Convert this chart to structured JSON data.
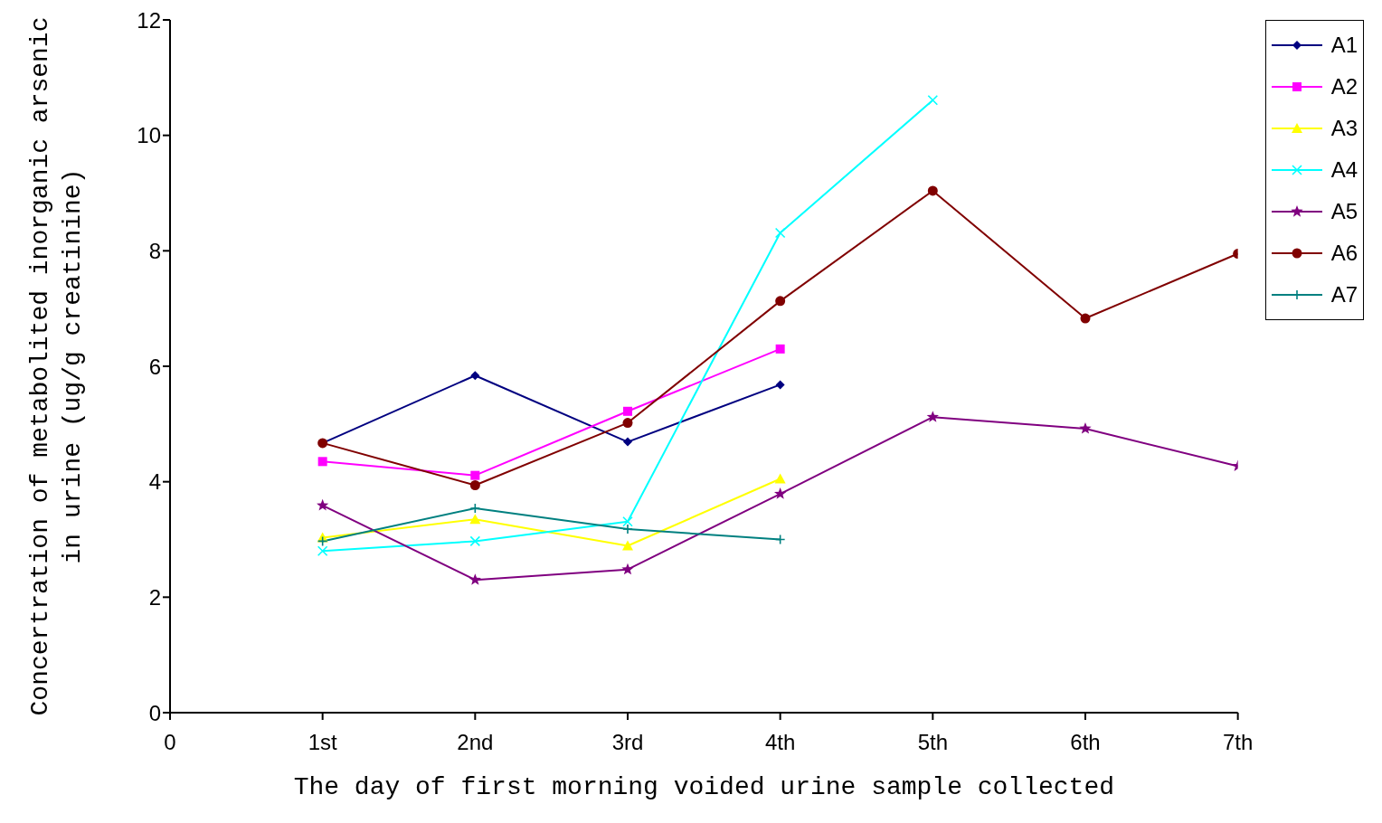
{
  "chart_data": {
    "type": "line",
    "xlabel": "The day of first morning voided urine sample collected",
    "ylabel": "Concertration of metabolited inorganic arsenic in urine (ug/g creatinine)",
    "x": [
      1,
      2,
      3,
      4,
      5,
      6,
      7
    ],
    "xlim": [
      0,
      7
    ],
    "xticks": [
      0,
      {
        "value": 1,
        "label": "1st"
      },
      {
        "value": 2,
        "label": "2nd"
      },
      {
        "value": 3,
        "label": "3rd"
      },
      {
        "value": 4,
        "label": "4th"
      },
      {
        "value": 5,
        "label": "5th"
      },
      {
        "value": 6,
        "label": "6th"
      },
      {
        "value": 7,
        "label": "7th"
      }
    ],
    "ylim": [
      0,
      12
    ],
    "yticks": [
      0,
      2,
      4,
      6,
      8,
      10,
      12
    ],
    "grid": false,
    "legend": "top right",
    "line_style": "solid",
    "series": [
      {
        "name": "A1",
        "color": "#000080",
        "marker": "diamond",
        "values": [
          4.67,
          5.84,
          4.69,
          5.68,
          null,
          null,
          null
        ]
      },
      {
        "name": "A2",
        "color": "#ff00ff",
        "marker": "square",
        "values": [
          4.35,
          4.11,
          5.22,
          6.3,
          null,
          null,
          null
        ]
      },
      {
        "name": "A3",
        "color": "#ffff00",
        "marker": "triangle",
        "values": [
          3.03,
          3.35,
          2.89,
          4.05,
          null,
          null,
          null
        ]
      },
      {
        "name": "A4",
        "color": "#00ffff",
        "marker": "cross",
        "values": [
          2.8,
          2.97,
          3.31,
          8.31,
          10.61,
          null,
          null
        ]
      },
      {
        "name": "A5",
        "color": "#800080",
        "marker": "star",
        "values": [
          3.59,
          2.3,
          2.48,
          3.79,
          5.12,
          4.92,
          4.27
        ]
      },
      {
        "name": "A6",
        "color": "#800000",
        "marker": "circle",
        "values": [
          4.67,
          3.94,
          5.02,
          7.13,
          9.04,
          6.83,
          7.95
        ]
      },
      {
        "name": "A7",
        "color": "#008080",
        "marker": "plus",
        "values": [
          2.97,
          3.54,
          3.18,
          3.0,
          null,
          null,
          null
        ]
      }
    ]
  }
}
